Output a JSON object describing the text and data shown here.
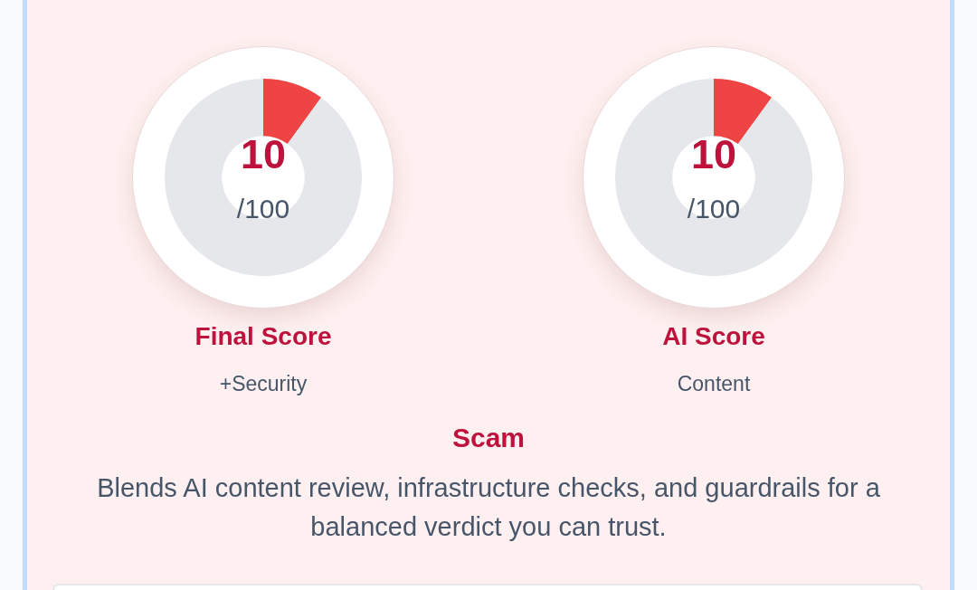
{
  "chart_data": [
    {
      "type": "donut",
      "title": "Final Score",
      "subtitle": "+Security",
      "categories": [
        null,
        null
      ],
      "values": [
        10,
        90
      ],
      "colors": [
        "#ef4444",
        "#e5e7eb"
      ],
      "value_labels": [
        "10",
        null
      ],
      "annotations": [
        "/100"
      ]
    },
    {
      "type": "donut",
      "title": "AI Score",
      "subtitle": "Content",
      "categories": [
        null,
        null
      ],
      "values": [
        10,
        90
      ],
      "colors": [
        "#ef4444",
        "#e5e7eb"
      ],
      "value_labels": [
        "10",
        null
      ],
      "annotations": [
        "/100"
      ]
    },
    {
      "type": "other",
      "title": "Scam",
      "annotations": [
        "Blends AI content review, infrastructure checks, and guardrails for a balanced verdict you can trust."
      ]
    }
  ]
}
